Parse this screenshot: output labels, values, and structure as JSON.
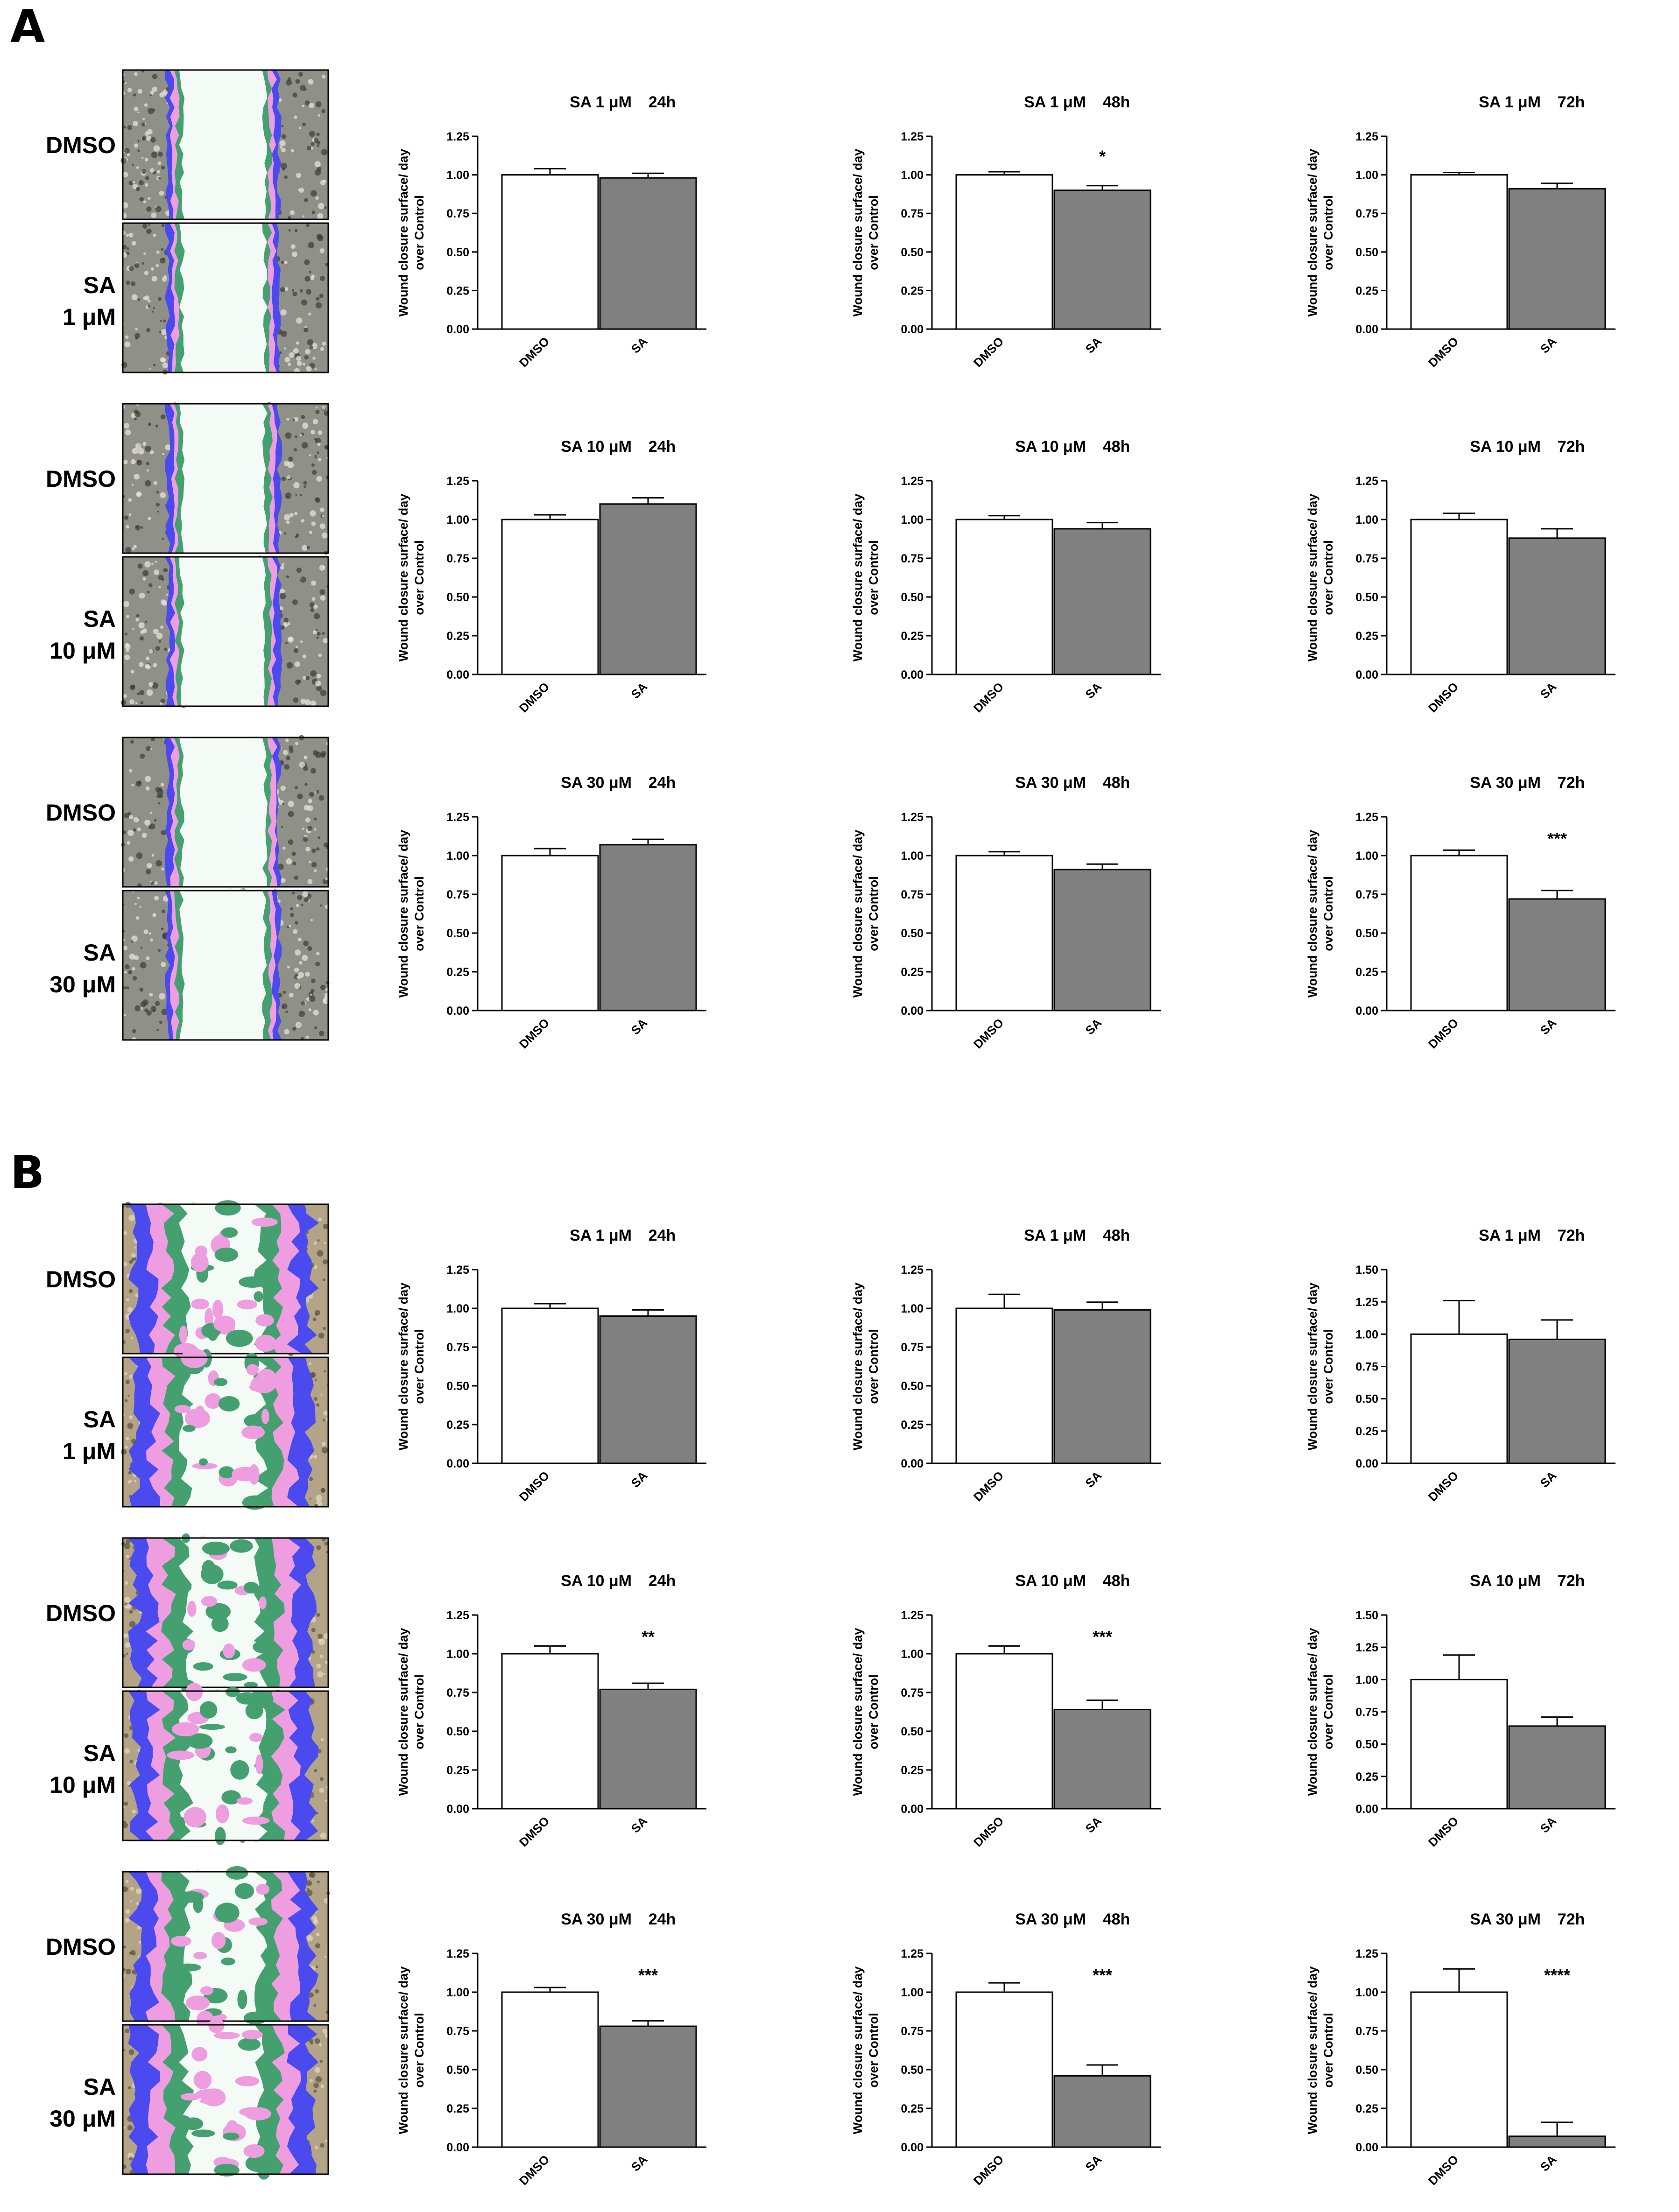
{
  "figure": {
    "panel_labels": [
      "A",
      "B"
    ],
    "y_axis_label_line1": "Wound closure surface/ day",
    "y_axis_label_line2": "over Control",
    "treatment_labels": [
      "DMSO",
      "SA"
    ],
    "unit": "μM",
    "colors": {
      "dmso_bar": "#ffffff",
      "sa_bar": "#808080",
      "outline": "#000000",
      "wound_white": "#f4fbf6",
      "blue_band": "#4a4aee",
      "pink_band": "#ee9ee0",
      "green_band": "#45a070"
    }
  },
  "micrograph_labels": {
    "A": [
      {
        "row": 0,
        "top": "DMSO",
        "bottom_line1": "SA",
        "bottom_line2": "1 μM"
      },
      {
        "row": 1,
        "top": "DMSO",
        "bottom_line1": "SA",
        "bottom_line2": "10 μM"
      },
      {
        "row": 2,
        "top": "DMSO",
        "bottom_line1": "SA",
        "bottom_line2": "30 μM"
      }
    ],
    "B": [
      {
        "row": 0,
        "top": "DMSO",
        "bottom_line1": "SA",
        "bottom_line2": "1 μM"
      },
      {
        "row": 1,
        "top": "DMSO",
        "bottom_line1": "SA",
        "bottom_line2": "10 μM"
      },
      {
        "row": 2,
        "top": "DMSO",
        "bottom_line1": "SA",
        "bottom_line2": "30 μM"
      }
    ]
  },
  "chart_data": [
    {
      "panel": "A",
      "row": 0,
      "col": 0,
      "type": "bar",
      "title_left": "SA 1 μM",
      "title_right": "24h",
      "categories": [
        "DMSO",
        "SA"
      ],
      "values": [
        1.0,
        0.98
      ],
      "errors": [
        0.04,
        0.03
      ],
      "ylim": [
        0,
        1.25
      ],
      "yticks": [
        "0.00",
        "0.25",
        "0.50",
        "0.75",
        "1.00",
        "1.25"
      ],
      "significance": ""
    },
    {
      "panel": "A",
      "row": 0,
      "col": 1,
      "type": "bar",
      "title_left": "SA 1 μM",
      "title_right": "48h",
      "categories": [
        "DMSO",
        "SA"
      ],
      "values": [
        1.0,
        0.9
      ],
      "errors": [
        0.02,
        0.03
      ],
      "ylim": [
        0,
        1.25
      ],
      "yticks": [
        "0.00",
        "0.25",
        "0.50",
        "0.75",
        "1.00",
        "1.25"
      ],
      "significance": "*"
    },
    {
      "panel": "A",
      "row": 0,
      "col": 2,
      "type": "bar",
      "title_left": "SA 1 μM",
      "title_right": "72h",
      "categories": [
        "DMSO",
        "SA"
      ],
      "values": [
        1.0,
        0.91
      ],
      "errors": [
        0.015,
        0.035
      ],
      "ylim": [
        0,
        1.25
      ],
      "yticks": [
        "0.00",
        "0.25",
        "0.50",
        "0.75",
        "1.00",
        "1.25"
      ],
      "significance": ""
    },
    {
      "panel": "A",
      "row": 1,
      "col": 0,
      "type": "bar",
      "title_left": "SA 10 μM",
      "title_right": "24h",
      "categories": [
        "DMSO",
        "SA"
      ],
      "values": [
        1.0,
        1.1
      ],
      "errors": [
        0.03,
        0.04
      ],
      "ylim": [
        0,
        1.25
      ],
      "yticks": [
        "0.00",
        "0.25",
        "0.50",
        "0.75",
        "1.00",
        "1.25"
      ],
      "significance": ""
    },
    {
      "panel": "A",
      "row": 1,
      "col": 1,
      "type": "bar",
      "title_left": "SA 10 μM",
      "title_right": "48h",
      "categories": [
        "DMSO",
        "SA"
      ],
      "values": [
        1.0,
        0.94
      ],
      "errors": [
        0.025,
        0.04
      ],
      "ylim": [
        0,
        1.25
      ],
      "yticks": [
        "0.00",
        "0.25",
        "0.50",
        "0.75",
        "1.00",
        "1.25"
      ],
      "significance": ""
    },
    {
      "panel": "A",
      "row": 1,
      "col": 2,
      "type": "bar",
      "title_left": "SA 10 μM",
      "title_right": "72h",
      "categories": [
        "DMSO",
        "SA"
      ],
      "values": [
        1.0,
        0.88
      ],
      "errors": [
        0.04,
        0.06
      ],
      "ylim": [
        0,
        1.25
      ],
      "yticks": [
        "0.00",
        "0.25",
        "0.50",
        "0.75",
        "1.00",
        "1.25"
      ],
      "significance": ""
    },
    {
      "panel": "A",
      "row": 2,
      "col": 0,
      "type": "bar",
      "title_left": "SA 30 μM",
      "title_right": "24h",
      "categories": [
        "DMSO",
        "SA"
      ],
      "values": [
        1.0,
        1.07
      ],
      "errors": [
        0.045,
        0.035
      ],
      "ylim": [
        0,
        1.25
      ],
      "yticks": [
        "0.00",
        "0.25",
        "0.50",
        "0.75",
        "1.00",
        "1.25"
      ],
      "significance": ""
    },
    {
      "panel": "A",
      "row": 2,
      "col": 1,
      "type": "bar",
      "title_left": "SA 30 μM",
      "title_right": "48h",
      "categories": [
        "DMSO",
        "SA"
      ],
      "values": [
        1.0,
        0.91
      ],
      "errors": [
        0.025,
        0.035
      ],
      "ylim": [
        0,
        1.25
      ],
      "yticks": [
        "0.00",
        "0.25",
        "0.50",
        "0.75",
        "1.00",
        "1.25"
      ],
      "significance": ""
    },
    {
      "panel": "A",
      "row": 2,
      "col": 2,
      "type": "bar",
      "title_left": "SA 30 μM",
      "title_right": "72h",
      "categories": [
        "DMSO",
        "SA"
      ],
      "values": [
        1.0,
        0.72
      ],
      "errors": [
        0.035,
        0.055
      ],
      "ylim": [
        0,
        1.25
      ],
      "yticks": [
        "0.00",
        "0.25",
        "0.50",
        "0.75",
        "1.00",
        "1.25"
      ],
      "significance": "***"
    },
    {
      "panel": "B",
      "row": 0,
      "col": 0,
      "type": "bar",
      "title_left": "SA 1 μM",
      "title_right": "24h",
      "categories": [
        "DMSO",
        "SA"
      ],
      "values": [
        1.0,
        0.95
      ],
      "errors": [
        0.03,
        0.04
      ],
      "ylim": [
        0,
        1.25
      ],
      "yticks": [
        "0.00",
        "0.25",
        "0.50",
        "0.75",
        "1.00",
        "1.25"
      ],
      "significance": ""
    },
    {
      "panel": "B",
      "row": 0,
      "col": 1,
      "type": "bar",
      "title_left": "SA 1 μM",
      "title_right": "48h",
      "categories": [
        "DMSO",
        "SA"
      ],
      "values": [
        1.0,
        0.99
      ],
      "errors": [
        0.09,
        0.05
      ],
      "ylim": [
        0,
        1.25
      ],
      "yticks": [
        "0.00",
        "0.25",
        "0.50",
        "0.75",
        "1.00",
        "1.25"
      ],
      "significance": ""
    },
    {
      "panel": "B",
      "row": 0,
      "col": 2,
      "type": "bar",
      "title_left": "SA 1 μM",
      "title_right": "72h",
      "categories": [
        "DMSO",
        "SA"
      ],
      "values": [
        1.0,
        0.96
      ],
      "errors": [
        0.26,
        0.15
      ],
      "ylim": [
        0,
        1.5
      ],
      "yticks": [
        "0.00",
        "0.25",
        "0.50",
        "0.75",
        "1.00",
        "1.25",
        "1.50"
      ],
      "significance": ""
    },
    {
      "panel": "B",
      "row": 1,
      "col": 0,
      "type": "bar",
      "title_left": "SA 10 μM",
      "title_right": "24h",
      "categories": [
        "DMSO",
        "SA"
      ],
      "values": [
        1.0,
        0.77
      ],
      "errors": [
        0.05,
        0.04
      ],
      "ylim": [
        0,
        1.25
      ],
      "yticks": [
        "0.00",
        "0.25",
        "0.50",
        "0.75",
        "1.00",
        "1.25"
      ],
      "significance": "**"
    },
    {
      "panel": "B",
      "row": 1,
      "col": 1,
      "type": "bar",
      "title_left": "SA 10 μM",
      "title_right": "48h",
      "categories": [
        "DMSO",
        "SA"
      ],
      "values": [
        1.0,
        0.64
      ],
      "errors": [
        0.05,
        0.06
      ],
      "ylim": [
        0,
        1.25
      ],
      "yticks": [
        "0.00",
        "0.25",
        "0.50",
        "0.75",
        "1.00",
        "1.25"
      ],
      "significance": "***"
    },
    {
      "panel": "B",
      "row": 1,
      "col": 2,
      "type": "bar",
      "title_left": "SA 10 μM",
      "title_right": "72h",
      "categories": [
        "DMSO",
        "SA"
      ],
      "values": [
        1.0,
        0.64
      ],
      "errors": [
        0.19,
        0.07
      ],
      "ylim": [
        0,
        1.5
      ],
      "yticks": [
        "0.00",
        "0.25",
        "0.50",
        "0.75",
        "1.00",
        "1.25",
        "1.50"
      ],
      "significance": ""
    },
    {
      "panel": "B",
      "row": 2,
      "col": 0,
      "type": "bar",
      "title_left": "SA 30 μM",
      "title_right": "24h",
      "categories": [
        "DMSO",
        "SA"
      ],
      "values": [
        1.0,
        0.78
      ],
      "errors": [
        0.03,
        0.035
      ],
      "ylim": [
        0,
        1.25
      ],
      "yticks": [
        "0.00",
        "0.25",
        "0.50",
        "0.75",
        "1.00",
        "1.25"
      ],
      "significance": "***"
    },
    {
      "panel": "B",
      "row": 2,
      "col": 1,
      "type": "bar",
      "title_left": "SA 30 μM",
      "title_right": "48h",
      "categories": [
        "DMSO",
        "SA"
      ],
      "values": [
        1.0,
        0.46
      ],
      "errors": [
        0.06,
        0.07
      ],
      "ylim": [
        0,
        1.25
      ],
      "yticks": [
        "0.00",
        "0.25",
        "0.50",
        "0.75",
        "1.00",
        "1.25"
      ],
      "significance": "***"
    },
    {
      "panel": "B",
      "row": 2,
      "col": 2,
      "type": "bar",
      "title_left": "SA 30 μM",
      "title_right": "72h",
      "categories": [
        "DMSO",
        "SA"
      ],
      "values": [
        1.0,
        0.07
      ],
      "errors": [
        0.15,
        0.09
      ],
      "ylim": [
        0,
        1.25
      ],
      "yticks": [
        "0.00",
        "0.25",
        "0.50",
        "0.75",
        "1.00",
        "1.25"
      ],
      "significance": "****"
    }
  ]
}
